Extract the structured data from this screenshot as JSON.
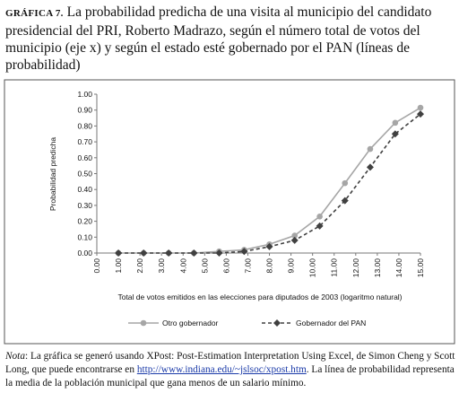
{
  "chart_data": {
    "type": "line",
    "label": "GRÁFICA 7.",
    "title": "La probabilidad predicha de una visita al municipio del candidato presidencial del PRI, Roberto Madrazo, según el número total de votos del municipio (eje x) y según el estado esté gobernado por el PAN (líneas de probabilidad)",
    "x_label": "Total de votos emitidos en las elecciones para diputados de 2003 (logaritmo natural)",
    "y_label": "Probabilidad predicha",
    "x": [
      1,
      2.17,
      3.33,
      4.5,
      5.67,
      6.83,
      8,
      9.17,
      10.33,
      11.5,
      12.67,
      13.83,
      15
    ],
    "series": [
      {
        "name": "Otro gobernador",
        "color": "#a6a6a6",
        "dash": false,
        "marker": "circle",
        "values": [
          0,
          0,
          0,
          0,
          0.01,
          0.02,
          0.055,
          0.11,
          0.23,
          0.44,
          0.655,
          0.82,
          0.915
        ]
      },
      {
        "name": "Gobernador del PAN",
        "color": "#404040",
        "dash": true,
        "marker": "diamond",
        "values": [
          0,
          0,
          0,
          0,
          0,
          0.01,
          0.04,
          0.08,
          0.17,
          0.33,
          0.54,
          0.75,
          0.875
        ]
      }
    ],
    "xlim": [
      0,
      15
    ],
    "xticks": [
      {
        "value": 0,
        "label": "0.00"
      },
      {
        "value": 1,
        "label": "1.00"
      },
      {
        "value": 2,
        "label": "2.00"
      },
      {
        "value": 3,
        "label": "3.00"
      },
      {
        "value": 4,
        "label": "4.00"
      },
      {
        "value": 5,
        "label": "5.00"
      },
      {
        "value": 6,
        "label": "6.00"
      },
      {
        "value": 7,
        "label": "7.00"
      },
      {
        "value": 8,
        "label": "8.00"
      },
      {
        "value": 9,
        "label": "9.00"
      },
      {
        "value": 10,
        "label": "10.00"
      },
      {
        "value": 11,
        "label": "11.00"
      },
      {
        "value": 12,
        "label": "12.00"
      },
      {
        "value": 13,
        "label": "13.00"
      },
      {
        "value": 14,
        "label": "14.00"
      },
      {
        "value": 15,
        "label": "15.00"
      }
    ],
    "ylim": [
      0,
      1
    ],
    "yticks": [
      {
        "value": 0,
        "label": "0.00"
      },
      {
        "value": 0.1,
        "label": "0.10"
      },
      {
        "value": 0.2,
        "label": "0.20"
      },
      {
        "value": 0.3,
        "label": "0.30"
      },
      {
        "value": 0.4,
        "label": "0.40"
      },
      {
        "value": 0.5,
        "label": "0.50"
      },
      {
        "value": 0.6,
        "label": "0.60"
      },
      {
        "value": 0.7,
        "label": "0.70"
      },
      {
        "value": 0.8,
        "label": "0.80"
      },
      {
        "value": 0.9,
        "label": "0.90"
      },
      {
        "value": 1,
        "label": "1.00"
      }
    ],
    "note": {
      "label": "Nota",
      "text1": ": La gráfica se generó usando XPost: Post-Estimation Interpretation Using Excel, de Simon Cheng y Scott Long, que puede encontrarse en ",
      "link": "http://www.indiana.edu/~jslsoc/xpost.htm",
      "text2": ". La línea de probabilidad representa la media de la población municipal que gana menos de un salario mínimo."
    }
  }
}
